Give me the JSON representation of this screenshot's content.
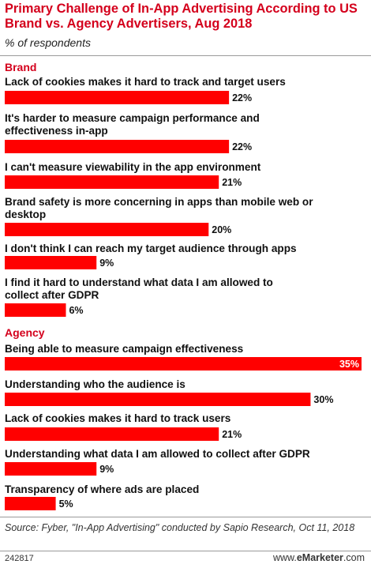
{
  "header": {
    "title": "Primary Challenge of In-App Advertising According to US Brand vs. Agency Advertisers, Aug 2018",
    "subtitle": "% of respondents"
  },
  "footer": {
    "source": "Source: Fyber, \"In-App Advertising\" conducted by Sapio Research, Oct 11, 2018",
    "chart_id": "242817",
    "brand_prefix": "www.",
    "brand_name": "eMarketer",
    "brand_suffix": ".com"
  },
  "colors": {
    "bar": "#ff0000",
    "group_label": "#d4001c",
    "text": "#111111"
  },
  "chart_data": {
    "type": "bar",
    "orientation": "horizontal",
    "unit": "%",
    "groups": [
      {
        "name": "Brand",
        "categories": [
          "Lack of cookies makes it hard to track and target users",
          "It's harder to measure campaign performance and effectiveness in-app",
          "I can't measure viewability in the app environment",
          "Brand safety is more concerning in apps than mobile web or desktop",
          "I don't think I can reach my target audience through apps",
          "I find it hard to understand what data I am allowed to collect after GDPR"
        ],
        "values": [
          22,
          22,
          21,
          20,
          9,
          6
        ]
      },
      {
        "name": "Agency",
        "categories": [
          "Being able to measure campaign effectiveness",
          "Understanding who the audience is",
          "Lack of cookies makes it hard to track users",
          "Understanding what data I am allowed to collect after GDPR",
          "Transparency of where ads are placed"
        ],
        "values": [
          35,
          30,
          21,
          9,
          5
        ]
      }
    ],
    "xlim": [
      0,
      35
    ]
  }
}
